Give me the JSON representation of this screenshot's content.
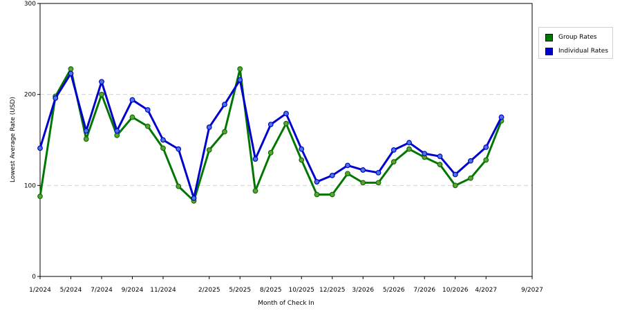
{
  "chart_data": {
    "type": "line",
    "xlabel": "Month of Check In",
    "ylabel": "Lowest Average Rate (USD)",
    "ylim": [
      0,
      300
    ],
    "yticks": [
      0,
      100,
      200,
      300
    ],
    "grid": "horizontal dashed",
    "legend_position": "top-right",
    "x": [
      "1/2024",
      "3/2024",
      "5/2024",
      "6/2024",
      "7/2024",
      "8/2024",
      "9/2024",
      "10/2024",
      "11/2024",
      "12/2024",
      "1/2025",
      "2/2025",
      "4/2025",
      "5/2025",
      "6/2025",
      "8/2025",
      "9/2025",
      "10/2025",
      "11/2025",
      "12/2025",
      "1/2026",
      "3/2026",
      "4/2026",
      "5/2026",
      "6/2026",
      "7/2026",
      "8/2026",
      "10/2026",
      "1/2027",
      "3/2027",
      "4/2027",
      "5/2027",
      "9/2027"
    ],
    "x_tick_labels": [
      "1/2024",
      "5/2024",
      "7/2024",
      "9/2024",
      "11/2024",
      "2/2025",
      "5/2025",
      "8/2025",
      "10/2025",
      "12/2025",
      "3/2026",
      "5/2026",
      "7/2026",
      "10/2026",
      "4/2027",
      "9/2027"
    ],
    "x_tick_indices": [
      0,
      2,
      4,
      6,
      8,
      11,
      13,
      15,
      17,
      19,
      21,
      23,
      25,
      27,
      29,
      32
    ],
    "series": [
      {
        "name": "Group Rates",
        "color": "#007700",
        "marker_color": "#6a9a3a",
        "values": [
          88,
          198,
          228,
          151,
          200,
          155,
          175,
          165,
          141,
          99,
          83,
          139,
          159,
          228,
          94,
          136,
          168,
          128,
          90,
          90,
          113,
          103,
          103,
          126,
          140,
          131,
          123,
          100,
          108,
          128,
          171,
          null,
          null
        ]
      },
      {
        "name": "Individual Rates",
        "color": "#0000cc",
        "marker_color": "#4a78e0",
        "values": [
          141,
          196,
          223,
          160,
          214,
          160,
          194,
          183,
          150,
          140,
          86,
          164,
          189,
          216,
          129,
          167,
          179,
          140,
          104,
          111,
          122,
          117,
          114,
          139,
          147,
          135,
          132,
          112,
          127,
          142,
          175,
          null,
          null
        ]
      }
    ]
  }
}
